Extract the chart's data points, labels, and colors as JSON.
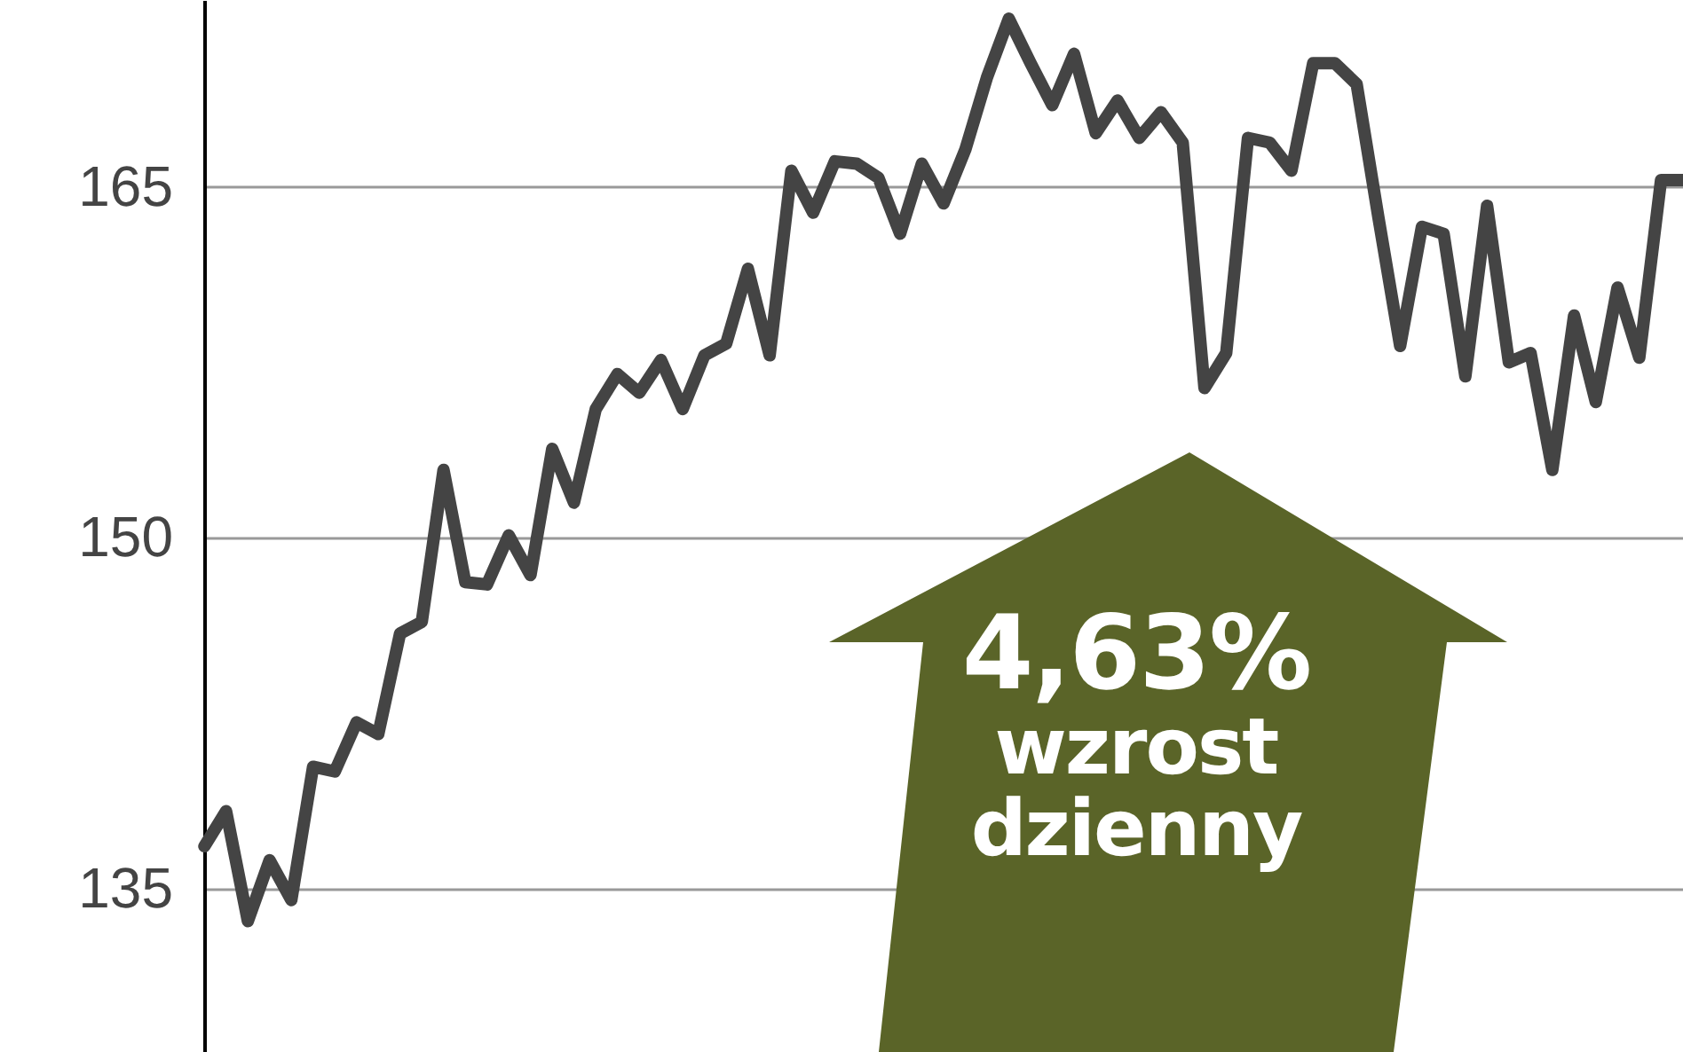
{
  "chart_data": {
    "type": "line",
    "categories": [
      null,
      null,
      null,
      null,
      null,
      null,
      null,
      null,
      null,
      null,
      null,
      null,
      null,
      null,
      null,
      null,
      null,
      null,
      null,
      null,
      null,
      null,
      null,
      null,
      null,
      null,
      null,
      null,
      null,
      null,
      null,
      null,
      null,
      null,
      null,
      null,
      null,
      null,
      null,
      null,
      null,
      null,
      null,
      null,
      null,
      null,
      null,
      null,
      null,
      null,
      null,
      null,
      null,
      null,
      null,
      null,
      null,
      null,
      null,
      null,
      null,
      null,
      null,
      null,
      null,
      null,
      null,
      null,
      null
    ],
    "series": [
      {
        "color": "#444444",
        "values": [
          136.8,
          138.3,
          133.6,
          136.2,
          134.5,
          140.2,
          140.0,
          142.1,
          141.6,
          145.9,
          146.4,
          152.9,
          148.1,
          148.0,
          150.1,
          148.4,
          153.8,
          151.5,
          155.5,
          157.0,
          156.2,
          157.6,
          155.5,
          157.8,
          158.3,
          161.5,
          157.8,
          165.7,
          163.9,
          166.1,
          166.0,
          165.4,
          163.0,
          166.0,
          164.3,
          166.6,
          169.7,
          172.2,
          170.3,
          168.5,
          170.7,
          167.3,
          168.7,
          167.1,
          168.2,
          166.9,
          156.4,
          157.9,
          167.1,
          166.9,
          165.7,
          170.3,
          170.3,
          169.4,
          163.7,
          158.2,
          163.3,
          163.0,
          156.9,
          164.2,
          157.5,
          157.9,
          152.9,
          159.5,
          155.8,
          160.7,
          157.7,
          165.3,
          165.3
        ]
      }
    ],
    "ylim": [
      128,
      173
    ],
    "yticks": [
      135,
      150,
      165
    ],
    "grid": "y",
    "tick_labels": "y",
    "annotations": [
      "4,63% wzrost dzienny"
    ]
  }
}
